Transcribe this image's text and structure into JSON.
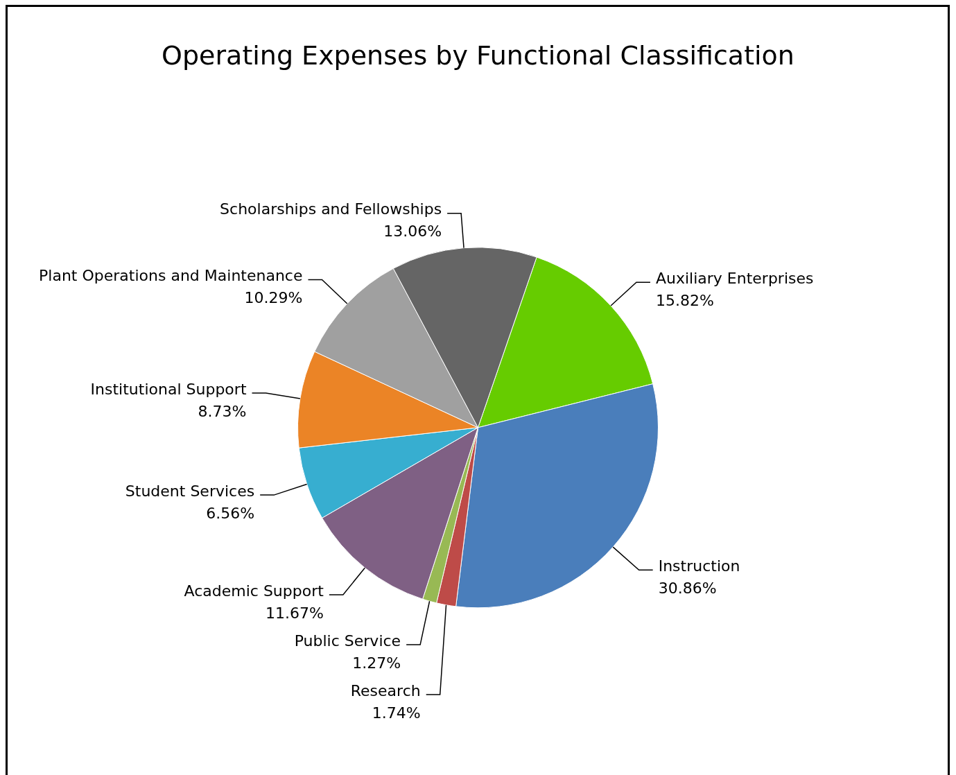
{
  "chart_data": {
    "type": "pie",
    "title": "Operating Expenses by Functional Classification",
    "categories": [
      "Auxiliary Enterprises",
      "Instruction",
      "Research",
      "Public Service",
      "Academic Support",
      "Student Services",
      "Institutional Support",
      "Plant Operations and Maintenance",
      "Scholarships and Fellowships"
    ],
    "values": [
      15.82,
      30.86,
      1.74,
      1.27,
      11.67,
      6.56,
      8.73,
      10.29,
      13.06
    ],
    "value_labels": [
      "15.82%",
      "30.86%",
      "1.74%",
      "1.27%",
      "11.67%",
      "6.56%",
      "8.73%",
      "10.29%",
      "13.06%"
    ],
    "colors": [
      "#66cc00",
      "#4a7ebb",
      "#be4b48",
      "#98b954",
      "#7f6084",
      "#37aed0",
      "#eb8426",
      "#a0a0a0",
      "#656565"
    ],
    "legend": false
  }
}
